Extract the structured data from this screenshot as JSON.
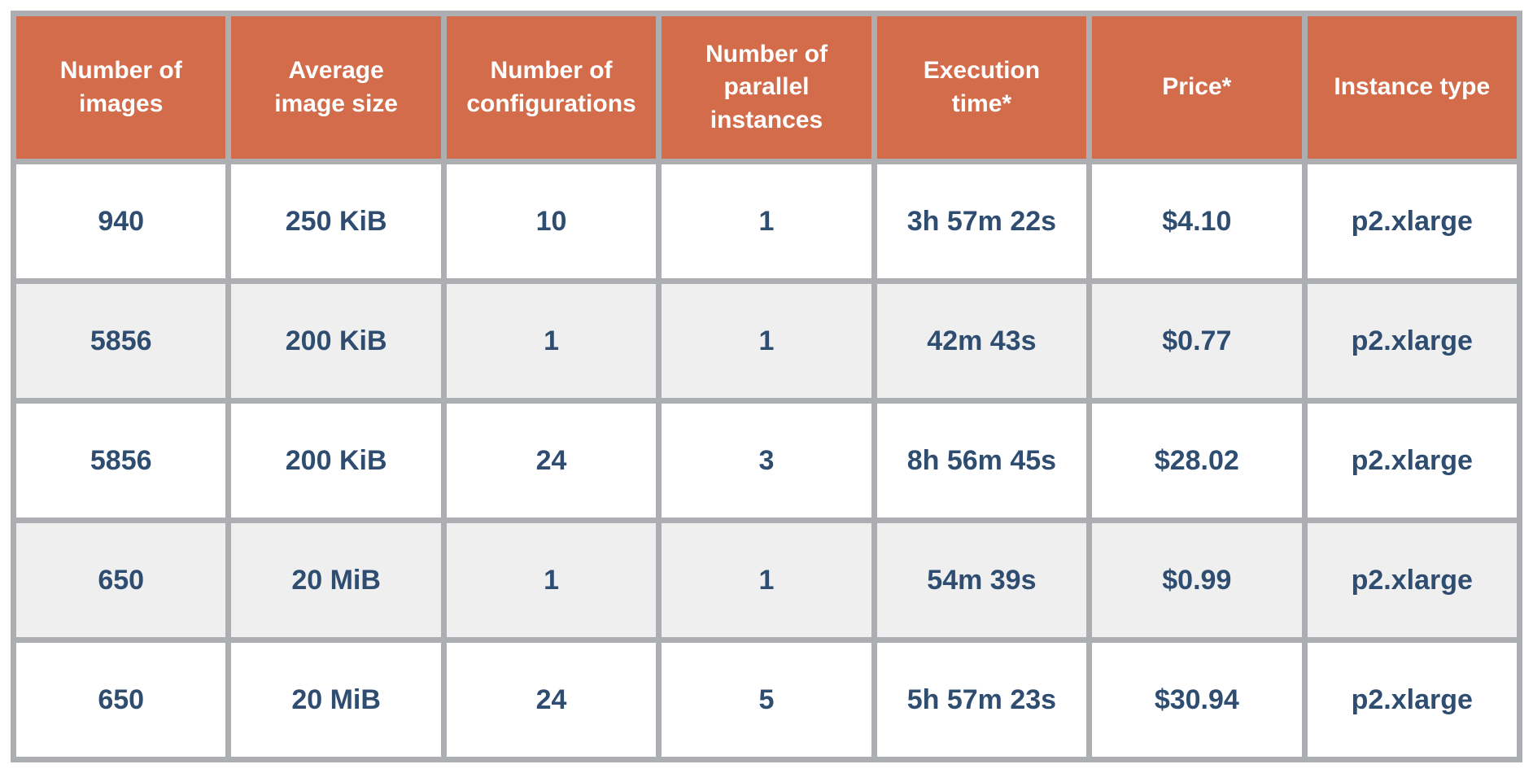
{
  "chart_data": {
    "type": "table",
    "columns": [
      "Number of images",
      "Average image size",
      "Number of configurations",
      "Number of parallel instances",
      "Execution time*",
      "Price*",
      "Instance type"
    ],
    "rows": [
      [
        "940",
        "250 KiB",
        "10",
        "1",
        "3h 57m 22s",
        "$4.10",
        "p2.xlarge"
      ],
      [
        "5856",
        "200 KiB",
        "1",
        "1",
        "42m 43s",
        "$0.77",
        "p2.xlarge"
      ],
      [
        "5856",
        "200 KiB",
        "24",
        "3",
        "8h 56m 45s",
        "$28.02",
        "p2.xlarge"
      ],
      [
        "650",
        "20 MiB",
        "1",
        "1",
        "54m 39s",
        "$0.99",
        "p2.xlarge"
      ],
      [
        "650",
        "20 MiB",
        "24",
        "5",
        "5h 57m 23s",
        "$30.94",
        "p2.xlarge"
      ]
    ],
    "title": "",
    "legend": "none",
    "grid": "on"
  },
  "table": {
    "header_lines": [
      "Number of\nimages",
      "Average\nimage size",
      "Number of\nconfigurations",
      "Number of\nparallel\ninstances",
      "Execution\ntime*",
      "Price*",
      "Instance type"
    ],
    "colors": {
      "header_bg": "#d26c4a",
      "header_text": "#ffffff",
      "row_text": "#2e4d70",
      "row_odd_bg": "#ffffff",
      "row_even_bg": "#efefef",
      "grid": "#acaeb2"
    }
  }
}
